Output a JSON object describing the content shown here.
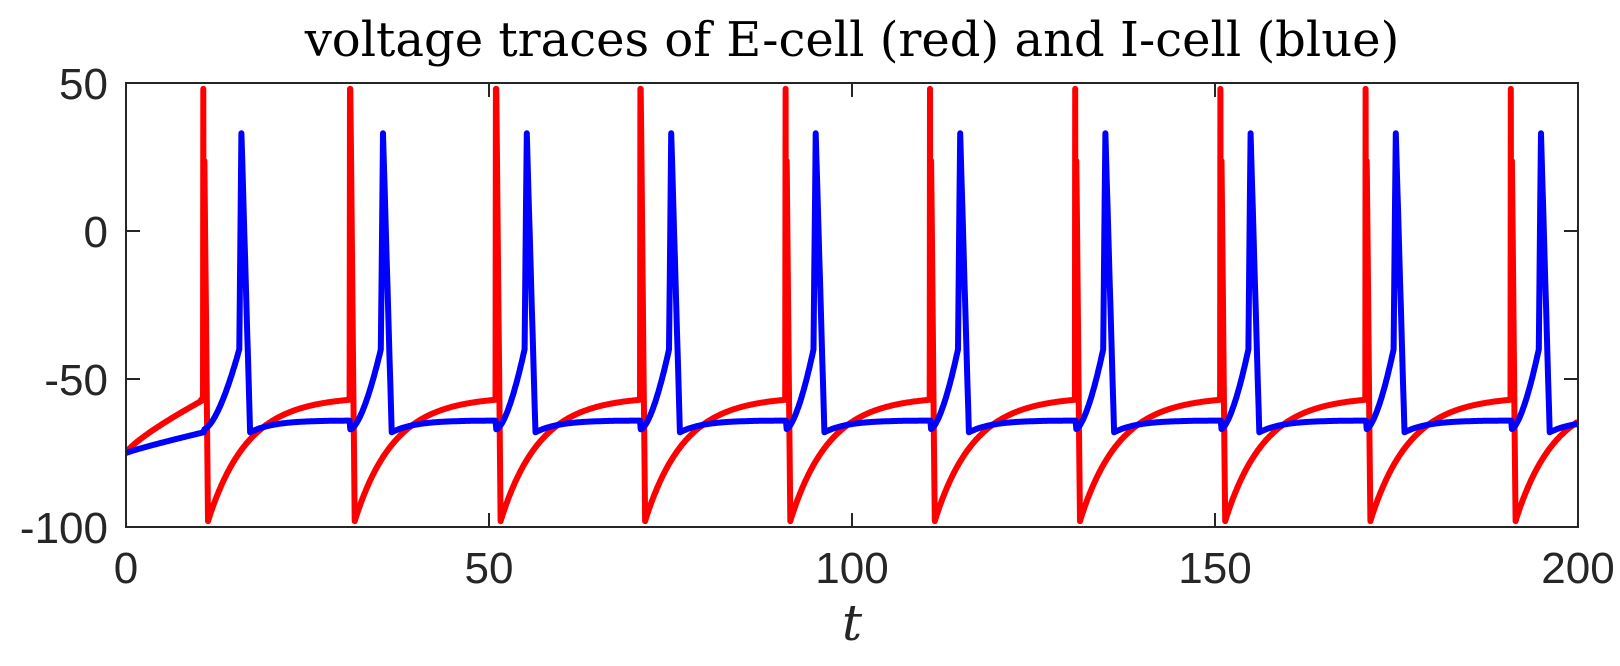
{
  "chart_data": {
    "type": "line",
    "title": "voltage traces of E-cell (red) and I-cell (blue)",
    "xlabel": "t",
    "ylabel": "",
    "xlim": [
      0,
      200
    ],
    "ylim": [
      -100,
      50
    ],
    "xticks": [
      0,
      50,
      100,
      150,
      200
    ],
    "yticks": [
      50,
      0,
      -50,
      -100
    ],
    "grid": false,
    "legend": "none",
    "series": [
      {
        "color": "#ff0000",
        "spike_times": [
          10.7,
          30.9,
          51.0,
          70.9,
          90.9,
          110.8,
          130.8,
          150.8,
          170.8,
          190.8
        ],
        "peak": 48,
        "trough": -98,
        "start_value": -75,
        "threshold": -57,
        "end_value": -70
      },
      {
        "color": "#0000ff",
        "spike_times": [
          15.6,
          35.1,
          54.9,
          74.8,
          94.7,
          114.6,
          134.6,
          154.6,
          174.6,
          194.6
        ],
        "peak": 33,
        "trough": -68,
        "start_value": -75,
        "rest": -64,
        "end_value": -64
      }
    ]
  }
}
